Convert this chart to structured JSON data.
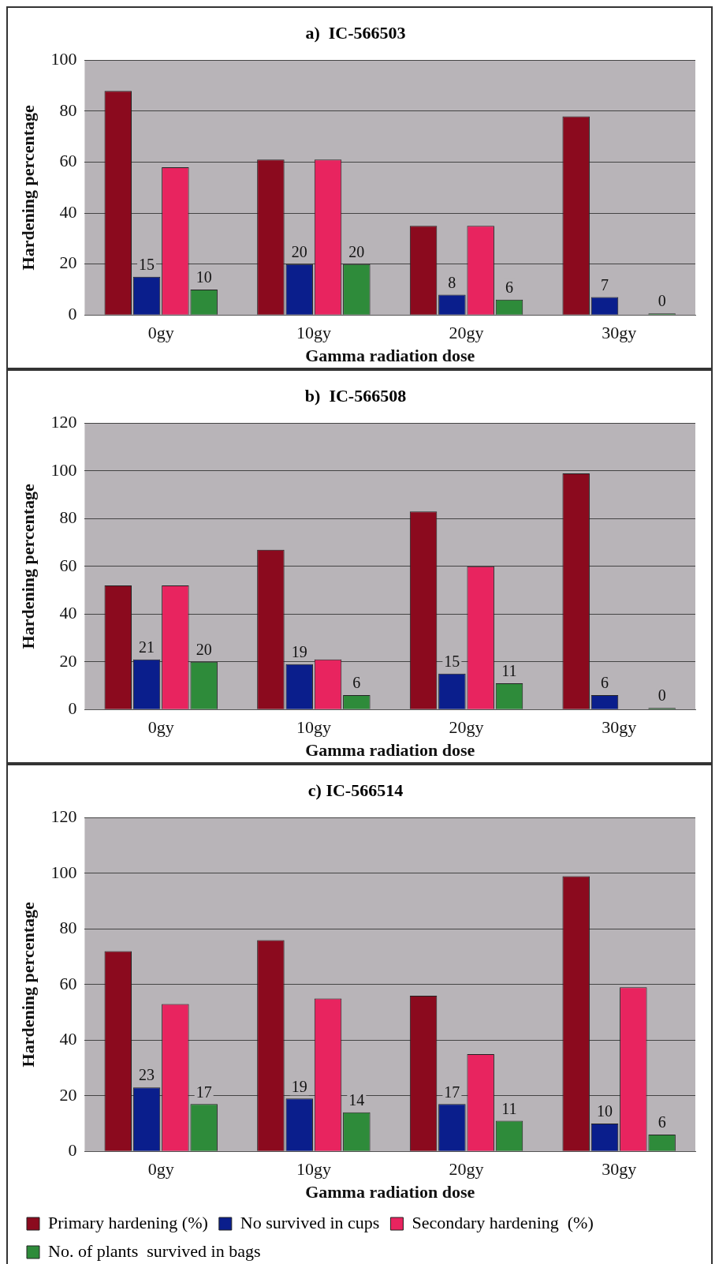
{
  "chart_data": [
    {
      "type": "bar",
      "title": "a)  IC-566503",
      "xlabel": "Gamma radiation dose",
      "ylabel": "Hardening percentage",
      "categories": [
        "0gy",
        "10gy",
        "20gy",
        "30gy"
      ],
      "ylim": [
        0,
        100
      ],
      "yticks": [
        0,
        20,
        40,
        60,
        80,
        100
      ],
      "grid": "y",
      "legend": false,
      "series": [
        {
          "color": "#8b0a1e",
          "values": [
            88,
            61,
            35,
            78
          ]
        },
        {
          "color": "#0a1e8c",
          "values": [
            15,
            20,
            8,
            7
          ],
          "value_labels": [
            "15",
            "20",
            "8",
            "7"
          ]
        },
        {
          "color": "#e8245f",
          "values": [
            58,
            61,
            35,
            null
          ]
        },
        {
          "color": "#2e8b3a",
          "values": [
            10,
            20,
            6,
            0
          ],
          "value_labels": [
            "10",
            "20",
            "6",
            "0"
          ]
        }
      ]
    },
    {
      "type": "bar",
      "title": "b)  IC-566508",
      "xlabel": "Gamma radiation dose",
      "ylabel": "Hardening percentage",
      "categories": [
        "0gy",
        "10gy",
        "20gy",
        "30gy"
      ],
      "ylim": [
        0,
        120
      ],
      "yticks": [
        0,
        20,
        40,
        60,
        80,
        100,
        120
      ],
      "grid": "y",
      "legend": false,
      "series": [
        {
          "color": "#8b0a1e",
          "values": [
            52,
            67,
            83,
            99
          ]
        },
        {
          "color": "#0a1e8c",
          "values": [
            21,
            19,
            15,
            6
          ],
          "value_labels": [
            "21",
            "19",
            "15",
            "6"
          ]
        },
        {
          "color": "#e8245f",
          "values": [
            52,
            21,
            60,
            null
          ]
        },
        {
          "color": "#2e8b3a",
          "values": [
            20,
            6,
            11,
            0
          ],
          "value_labels": [
            "20",
            "6",
            "11",
            "0"
          ]
        }
      ]
    },
    {
      "type": "bar",
      "title": "c) IC-566514",
      "xlabel": "Gamma radiation dose",
      "ylabel": "Hardening percentage",
      "categories": [
        "0gy",
        "10gy",
        "20gy",
        "30gy"
      ],
      "ylim": [
        0,
        120
      ],
      "yticks": [
        0,
        20,
        40,
        60,
        80,
        100,
        120
      ],
      "grid": "y",
      "legend": "bottom",
      "series": [
        {
          "name": "Primary hardening (%)",
          "color": "#8b0a1e",
          "values": [
            72,
            76,
            56,
            99
          ]
        },
        {
          "name": "No survived in cups",
          "color": "#0a1e8c",
          "values": [
            23,
            19,
            17,
            10
          ],
          "value_labels": [
            "23",
            "19",
            "17",
            "10"
          ]
        },
        {
          "name": "Secondary hardening  (%)",
          "color": "#e8245f",
          "values": [
            53,
            55,
            35,
            59
          ]
        },
        {
          "name": "No. of plants  survived in bags",
          "color": "#2e8b3a",
          "values": [
            17,
            14,
            11,
            6
          ],
          "value_labels": [
            "17",
            "14",
            "11",
            "6"
          ]
        }
      ]
    }
  ]
}
